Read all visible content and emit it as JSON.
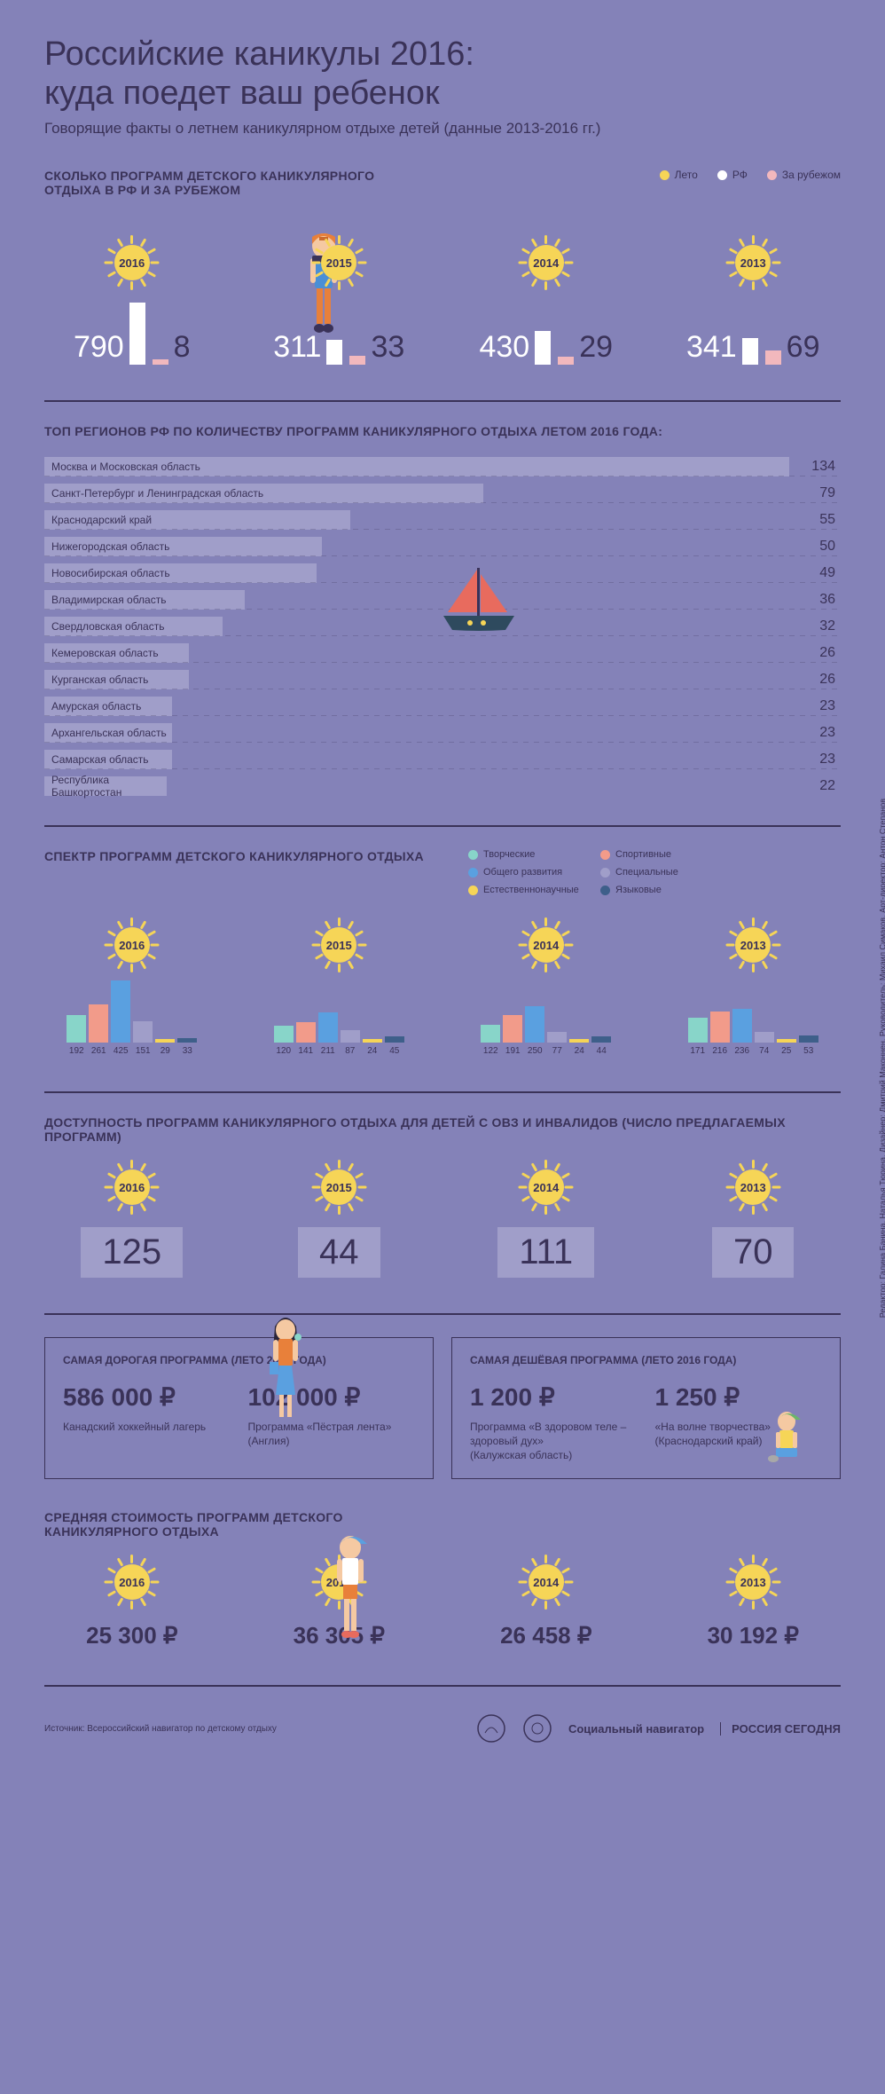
{
  "colors": {
    "bg": "#8482b8",
    "dark": "#3a3258",
    "light_bar": "#a09ec9",
    "sun": "#f6d557",
    "white": "#ffffff",
    "pink": "#f2b8bd",
    "teal": "#88d5c9",
    "coral": "#f29b8a",
    "blue": "#5aa0e0",
    "darkblue": "#3e5f8a"
  },
  "title": "Российские каникулы 2016:\nкуда поедет ваш ребенок",
  "subtitle": "Говорящие факты о летнем каникулярном отдыхе детей (данные 2013-2016 гг.)",
  "programs": {
    "title": "СКОЛЬКО ПРОГРАММ ДЕТСКОГО КАНИКУЛЯРНОГО ОТДЫХА В РФ И ЗА РУБЕЖОМ",
    "legend": [
      {
        "label": "Лето",
        "color": "#f6d557"
      },
      {
        "label": "РФ",
        "color": "#ffffff"
      },
      {
        "label": "За рубежом",
        "color": "#f2b8bd"
      }
    ],
    "years": [
      {
        "year": "2016",
        "rf": 790,
        "abroad": 8,
        "rf_h": 70,
        "ab_h": 6
      },
      {
        "year": "2015",
        "rf": 311,
        "abroad": 33,
        "rf_h": 28,
        "ab_h": 10
      },
      {
        "year": "2014",
        "rf": 430,
        "abroad": 29,
        "rf_h": 38,
        "ab_h": 9
      },
      {
        "year": "2013",
        "rf": 341,
        "abroad": 69,
        "rf_h": 30,
        "ab_h": 16
      }
    ]
  },
  "regions": {
    "title": "ТОП РЕГИОНОВ РФ ПО КОЛИЧЕСТВУ ПРОГРАММ КАНИКУЛЯРНОГО ОТДЫХА ЛЕТОМ 2016 ГОДА:",
    "max": 134,
    "items": [
      {
        "name": "Москва и Московская область",
        "value": 134
      },
      {
        "name": "Санкт-Петербург и Ленинградская область",
        "value": 79
      },
      {
        "name": "Краснодарский край",
        "value": 55
      },
      {
        "name": "Нижегородская область",
        "value": 50
      },
      {
        "name": "Новосибирская область",
        "value": 49
      },
      {
        "name": "Владимирская область",
        "value": 36
      },
      {
        "name": "Свердловская область",
        "value": 32
      },
      {
        "name": "Кемеровская область",
        "value": 26
      },
      {
        "name": "Курганская область",
        "value": 26
      },
      {
        "name": "Амурская область",
        "value": 23
      },
      {
        "name": "Архангельская область",
        "value": 23
      },
      {
        "name": "Самарская область",
        "value": 23
      },
      {
        "name": "Республика Башкортостан",
        "value": 22
      }
    ]
  },
  "spectrum": {
    "title": "СПЕКТР ПРОГРАММ ДЕТСКОГО КАНИКУЛЯРНОГО ОТДЫХА",
    "legend": [
      {
        "label": "Творческие",
        "color": "#88d5c9"
      },
      {
        "label": "Спортивные",
        "color": "#f29b8a"
      },
      {
        "label": "Общего развития",
        "color": "#5aa0e0"
      },
      {
        "label": "Специальные",
        "color": "#a09ec9"
      },
      {
        "label": "Естественнонаучные",
        "color": "#f6d557"
      },
      {
        "label": "Языковые",
        "color": "#3e5f8a"
      }
    ],
    "max": 425,
    "years": [
      {
        "year": "2016",
        "values": [
          192,
          261,
          425,
          151,
          29,
          33
        ]
      },
      {
        "year": "2015",
        "values": [
          120,
          141,
          211,
          87,
          24,
          45
        ]
      },
      {
        "year": "2014",
        "values": [
          122,
          191,
          250,
          77,
          24,
          44
        ]
      },
      {
        "year": "2013",
        "values": [
          171,
          216,
          236,
          74,
          25,
          53
        ]
      }
    ]
  },
  "disability": {
    "title": "ДОСТУПНОСТЬ ПРОГРАММ КАНИКУЛЯРНОГО ОТДЫХА ДЛЯ ДЕТЕЙ С ОВЗ И ИНВАЛИДОВ (ЧИСЛО ПРЕДЛАГАЕМЫХ ПРОГРАММ)",
    "years": [
      {
        "year": "2016",
        "value": "125"
      },
      {
        "year": "2015",
        "value": "44"
      },
      {
        "year": "2014",
        "value": "111"
      },
      {
        "year": "2013",
        "value": "70"
      }
    ]
  },
  "expensive": {
    "title": "САМАЯ ДОРОГАЯ ПРОГРАММА (ЛЕТО 2016 ГОДА)",
    "items": [
      {
        "price": "586 000 ₽",
        "label": "Канадский хоккейный лагерь",
        "sub": ""
      },
      {
        "price": "102 000 ₽",
        "label": "Программа «Пёстрая лента»",
        "sub": "(Англия)"
      }
    ]
  },
  "cheap": {
    "title": "САМАЯ ДЕШЁВАЯ ПРОГРАММА (ЛЕТО 2016 ГОДА)",
    "items": [
      {
        "price": "1 200 ₽",
        "label": "Программа «В здоровом теле – здоровый дух»",
        "sub": "(Калужская область)"
      },
      {
        "price": "1 250 ₽",
        "label": "«На волне творчества»",
        "sub": "(Краснодарский край)"
      }
    ]
  },
  "avg": {
    "title": "СРЕДНЯЯ СТОИМОСТЬ ПРОГРАММ ДЕТСКОГО КАНИКУЛЯРНОГО ОТДЫХА",
    "years": [
      {
        "year": "2016",
        "value": "25 300 ₽"
      },
      {
        "year": "2015",
        "value": "36 305 ₽"
      },
      {
        "year": "2014",
        "value": "26 458 ₽"
      },
      {
        "year": "2013",
        "value": "30 192 ₽"
      }
    ]
  },
  "footer": {
    "source": "Источник: Всероссийский навигатор по детскому отдыху",
    "brand1": "Социальный навигатор",
    "brand2": "РОССИЯ СЕГОДНЯ"
  },
  "credits": "Редактор: Галина Банина, Наталья Тюрина. Дизайнер: Дмитрий Маконнен. Руководитель: Михаил Симаков. Арт-директор: Антон Степанов"
}
